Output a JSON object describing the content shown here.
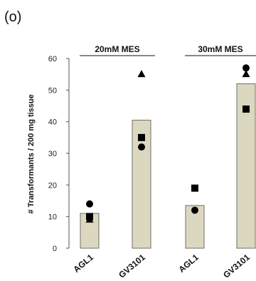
{
  "panel_label": "(o)",
  "chart_data": {
    "type": "bar",
    "title": "",
    "ylabel": "# Transformants / 200 mg tissue",
    "xlabel": "",
    "ylim": [
      0,
      60
    ],
    "yticks": [
      0,
      10,
      20,
      30,
      40,
      50,
      60
    ],
    "grid": false,
    "legend": "none",
    "bar_color": "#dcd8c0",
    "bar_edge_color": "#6e6e6e",
    "groups": [
      {
        "label": "20mM MES",
        "categories": [
          "AGL1",
          "GV3101"
        ]
      },
      {
        "label": "30mM MES",
        "categories": [
          "AGL1",
          "GV3101"
        ]
      }
    ],
    "categories": [
      "AGL1",
      "GV3101",
      "AGL1",
      "GV3101"
    ],
    "values": [
      11,
      40.5,
      13.5,
      52
    ],
    "replicates": [
      {
        "marker": "circle",
        "values": [
          14,
          32,
          12,
          57
        ]
      },
      {
        "marker": "square",
        "values": [
          10,
          35,
          19,
          44
        ]
      },
      {
        "marker": "triangle",
        "values": [
          9,
          55,
          null,
          55
        ]
      }
    ]
  }
}
